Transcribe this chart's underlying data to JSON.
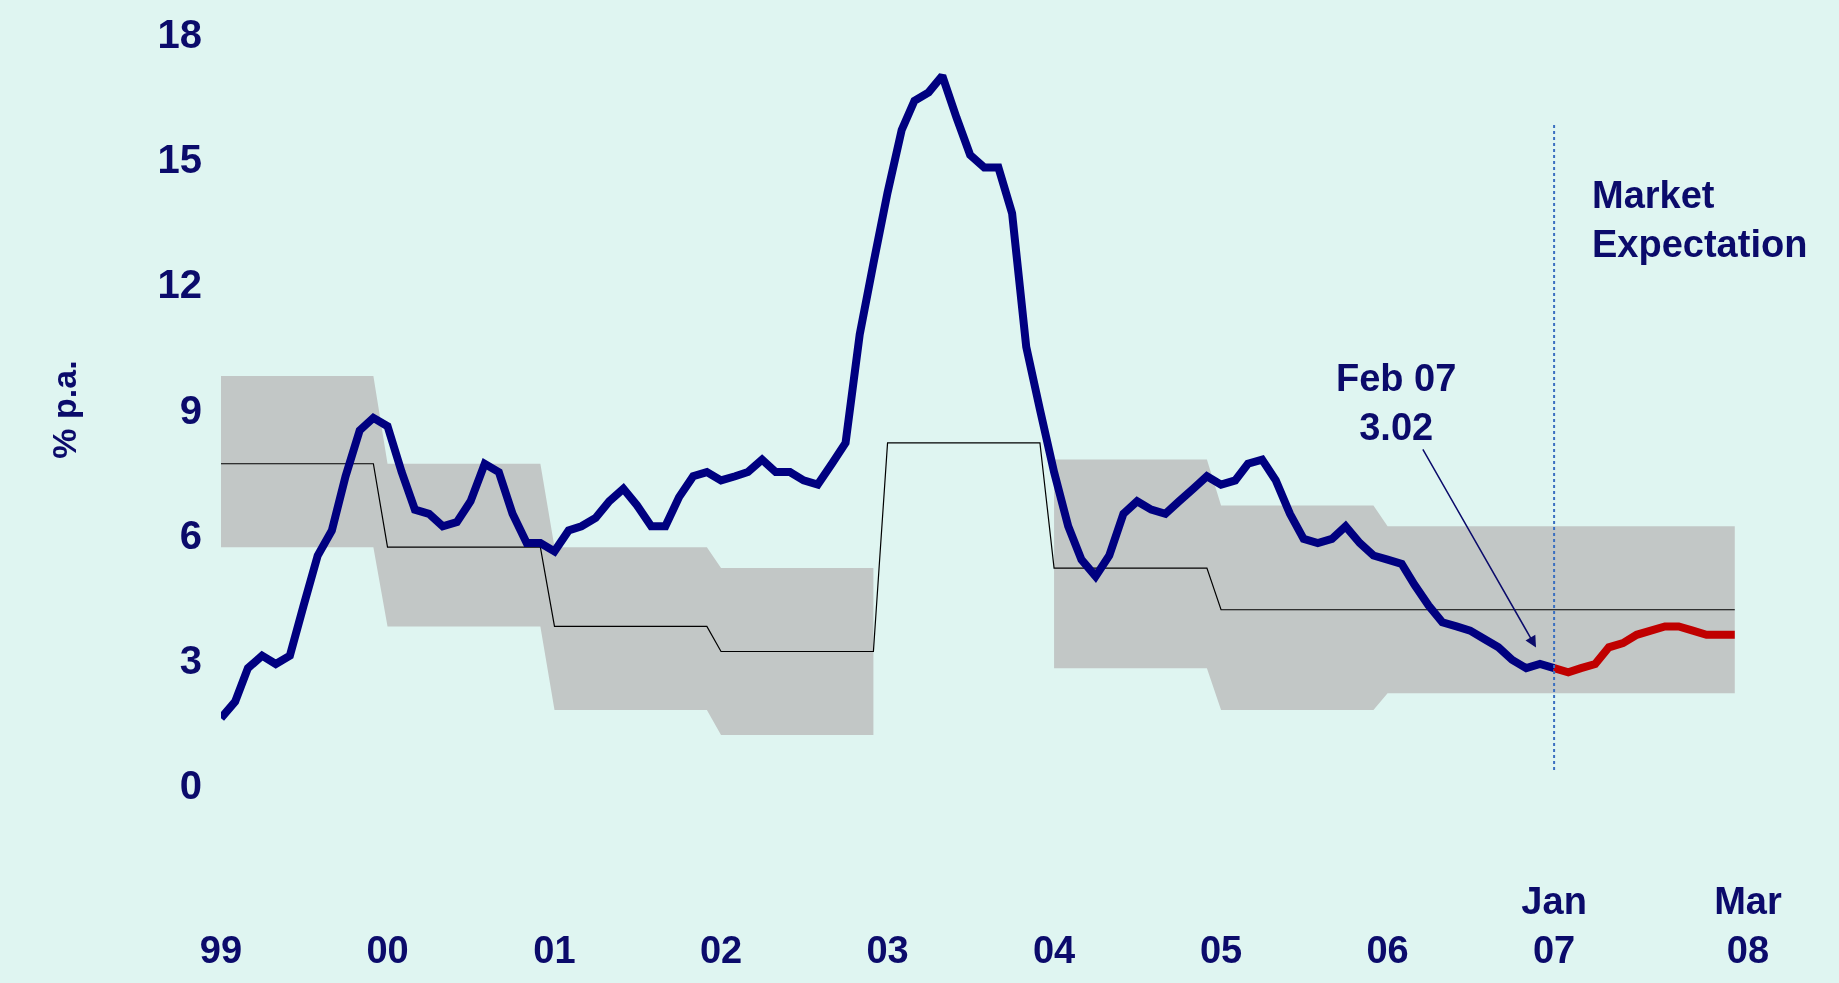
{
  "chart_data": {
    "type": "line",
    "ylabel": "% p.a.",
    "xlim": [
      "1999-01",
      "2008-03"
    ],
    "ylim": [
      0,
      18
    ],
    "yticks": [
      0,
      3,
      6,
      9,
      12,
      15,
      18
    ],
    "xticks": [
      {
        "value": "1999-01",
        "label": "99"
      },
      {
        "value": "2000-01",
        "label": "00"
      },
      {
        "value": "2001-01",
        "label": "01"
      },
      {
        "value": "2002-01",
        "label": "02"
      },
      {
        "value": "2003-01",
        "label": "03"
      },
      {
        "value": "2004-01",
        "label": "04"
      },
      {
        "value": "2005-01",
        "label": "05"
      },
      {
        "value": "2006-01",
        "label": "06"
      },
      {
        "value": "2007-01",
        "label": "Jan\n07"
      },
      {
        "value": "2008-03",
        "label": "Mar\n08"
      }
    ],
    "grid": false,
    "marker": "none",
    "series": [
      {
        "color": "#000000",
        "line_style": "solid",
        "x": [
          "1999-01",
          "1999-12",
          "2000-01",
          "2000-12",
          "2001-01",
          "2001-12",
          "2002-01",
          "2002-12",
          "2003-01",
          "2003-12",
          "2004-01",
          "2004-12",
          "2005-01",
          "2005-12",
          "2006-01",
          "2008-02"
        ],
        "values": [
          7.7,
          7.7,
          5.7,
          5.7,
          3.8,
          3.8,
          3.2,
          3.2,
          8.2,
          8.2,
          5.2,
          5.2,
          4.2,
          4.2,
          4.2,
          4.2
        ],
        "lower": [
          5.7,
          5.7,
          3.8,
          3.8,
          1.8,
          1.8,
          1.2,
          1.2,
          null,
          null,
          2.8,
          2.8,
          1.8,
          1.8,
          2.2,
          2.2
        ],
        "upper": [
          9.8,
          9.8,
          7.7,
          7.7,
          5.7,
          5.7,
          5.2,
          5.2,
          null,
          null,
          7.8,
          7.8,
          6.7,
          6.7,
          6.2,
          6.2
        ]
      },
      {
        "color": "#000080",
        "line_style": "solid",
        "x": [
          "1999-01",
          "1999-02",
          "1999-03",
          "1999-04",
          "1999-05",
          "1999-06",
          "1999-07",
          "1999-08",
          "1999-09",
          "1999-10",
          "1999-11",
          "1999-12",
          "2000-01",
          "2000-02",
          "2000-03",
          "2000-04",
          "2000-05",
          "2000-06",
          "2000-07",
          "2000-08",
          "2000-09",
          "2000-10",
          "2000-11",
          "2000-12",
          "2001-01",
          "2001-02",
          "2001-03",
          "2001-04",
          "2001-05",
          "2001-06",
          "2001-07",
          "2001-08",
          "2001-09",
          "2001-10",
          "2001-11",
          "2001-12",
          "2002-01",
          "2002-02",
          "2002-03",
          "2002-04",
          "2002-05",
          "2002-06",
          "2002-07",
          "2002-08",
          "2002-09",
          "2002-10",
          "2002-11",
          "2002-12",
          "2003-01",
          "2003-02",
          "2003-03",
          "2003-04",
          "2003-05",
          "2003-06",
          "2003-07",
          "2003-08",
          "2003-09",
          "2003-10",
          "2003-11",
          "2003-12",
          "2004-01",
          "2004-02",
          "2004-03",
          "2004-04",
          "2004-05",
          "2004-06",
          "2004-07",
          "2004-08",
          "2004-09",
          "2004-10",
          "2004-11",
          "2004-12",
          "2005-01",
          "2005-02",
          "2005-03",
          "2005-04",
          "2005-05",
          "2005-06",
          "2005-07",
          "2005-08",
          "2005-09",
          "2005-10",
          "2005-11",
          "2005-12",
          "2006-01",
          "2006-02",
          "2006-03",
          "2006-04",
          "2006-05",
          "2006-06",
          "2006-07",
          "2006-08",
          "2006-09",
          "2006-10",
          "2006-11",
          "2006-12",
          "2007-01"
        ],
        "values": [
          1.6,
          2.0,
          2.8,
          3.1,
          2.9,
          3.1,
          4.3,
          5.5,
          6.1,
          7.4,
          8.5,
          8.8,
          8.6,
          7.5,
          6.6,
          6.5,
          6.2,
          6.3,
          6.8,
          7.7,
          7.5,
          6.5,
          5.8,
          5.8,
          5.6,
          6.1,
          6.2,
          6.4,
          6.8,
          7.1,
          6.7,
          6.2,
          6.2,
          6.9,
          7.4,
          7.5,
          7.3,
          7.4,
          7.5,
          7.8,
          7.5,
          7.5,
          7.3,
          7.2,
          7.7,
          8.2,
          10.8,
          12.5,
          14.2,
          15.7,
          16.4,
          16.6,
          17.0,
          16.0,
          15.1,
          14.8,
          14.8,
          13.7,
          10.5,
          9.0,
          7.5,
          6.2,
          5.4,
          5.0,
          5.5,
          6.5,
          6.8,
          6.6,
          6.5,
          6.8,
          7.1,
          7.4,
          7.2,
          7.3,
          7.7,
          7.8,
          7.3,
          6.5,
          5.9,
          5.8,
          5.9,
          6.2,
          5.8,
          5.5,
          5.4,
          5.3,
          4.8,
          4.3,
          3.9,
          3.8,
          3.7,
          3.5,
          3.3,
          3.0,
          2.8,
          2.9,
          2.8
        ]
      },
      {
        "color": "#c00000",
        "line_style": "solid",
        "x": [
          "2007-01",
          "2007-02",
          "2007-03",
          "2007-04",
          "2007-05",
          "2007-06",
          "2007-07",
          "2007-08",
          "2007-09",
          "2007-10",
          "2007-11",
          "2007-12",
          "2008-01",
          "2008-02"
        ],
        "values": [
          2.8,
          2.7,
          2.8,
          2.9,
          3.3,
          3.4,
          3.6,
          3.7,
          3.8,
          3.8,
          3.7,
          3.6,
          3.6,
          3.6
        ]
      }
    ],
    "ref_lines": [
      {
        "axis": "x",
        "value": "2007-01",
        "color": "#3a6fc0",
        "line_style": "dotted"
      }
    ],
    "annotations": [
      "Feb 07\n3.02",
      "Market\nExpectation"
    ]
  }
}
